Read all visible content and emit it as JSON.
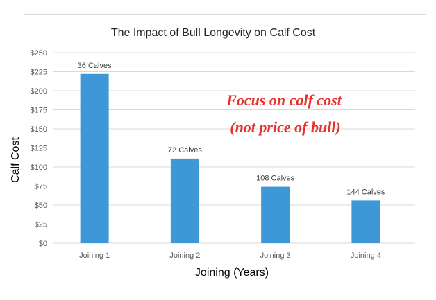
{
  "chart_data": {
    "type": "bar",
    "title": "The Impact of Bull Longevity on Calf Cost",
    "xlabel": "Joining (Years)",
    "ylabel": "Calf Cost",
    "categories": [
      "Joining 1",
      "Joining 2",
      "Joining 3",
      "Joining 4"
    ],
    "values": [
      222,
      111,
      74,
      56
    ],
    "data_labels": [
      "36 Calves",
      "72 Calves",
      "108 Calves",
      "144 Calves"
    ],
    "ylim": [
      0,
      250
    ],
    "yticks": [
      0,
      25,
      50,
      75,
      100,
      125,
      150,
      175,
      200,
      225,
      250
    ],
    "ytick_labels": [
      "$0",
      "$25",
      "$50",
      "$75",
      "$100",
      "$125",
      "$150",
      "$175",
      "$200",
      "$225",
      "$250"
    ],
    "grid": true,
    "annotations": [
      "Focus on calf cost",
      "(not price of bull)"
    ],
    "colors": {
      "bar": "#3e97d6",
      "grid": "#d9d9d9",
      "annotation": "#e8302b"
    }
  }
}
